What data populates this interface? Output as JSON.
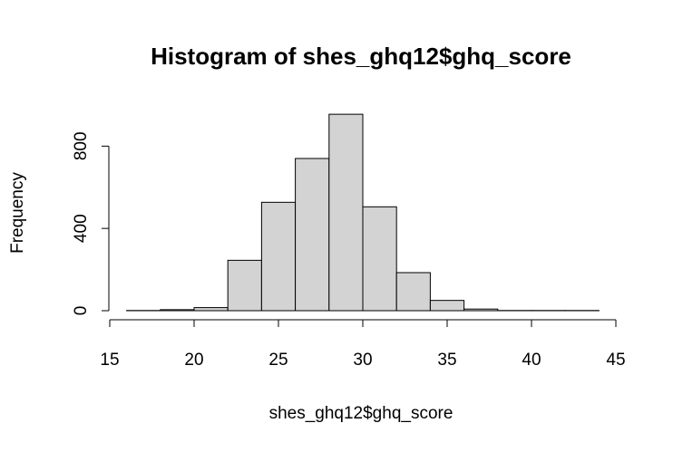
{
  "chart_data": {
    "type": "bar",
    "title": "Histogram of shes_ghq12$ghq_score",
    "xlabel": "shes_ghq12$ghq_score",
    "ylabel": "Frequency",
    "bins": [
      {
        "start": 16,
        "end": 18,
        "count": 1
      },
      {
        "start": 18,
        "end": 20,
        "count": 5
      },
      {
        "start": 20,
        "end": 22,
        "count": 15
      },
      {
        "start": 22,
        "end": 24,
        "count": 245
      },
      {
        "start": 24,
        "end": 26,
        "count": 527
      },
      {
        "start": 26,
        "end": 28,
        "count": 740
      },
      {
        "start": 28,
        "end": 30,
        "count": 955
      },
      {
        "start": 30,
        "end": 32,
        "count": 505
      },
      {
        "start": 32,
        "end": 34,
        "count": 185
      },
      {
        "start": 34,
        "end": 36,
        "count": 50
      },
      {
        "start": 36,
        "end": 38,
        "count": 8
      },
      {
        "start": 38,
        "end": 40,
        "count": 1
      },
      {
        "start": 40,
        "end": 42,
        "count": 1
      },
      {
        "start": 42,
        "end": 44,
        "count": 1
      }
    ],
    "xlim": [
      15,
      45
    ],
    "ylim": [
      0,
      960
    ],
    "x_ticks": [
      15,
      20,
      25,
      30,
      35,
      40,
      45
    ],
    "y_ticks": [
      0,
      400,
      800
    ],
    "bar_color": "#d3d3d3",
    "border_color": "#000000",
    "grid": false,
    "legend": "none"
  }
}
